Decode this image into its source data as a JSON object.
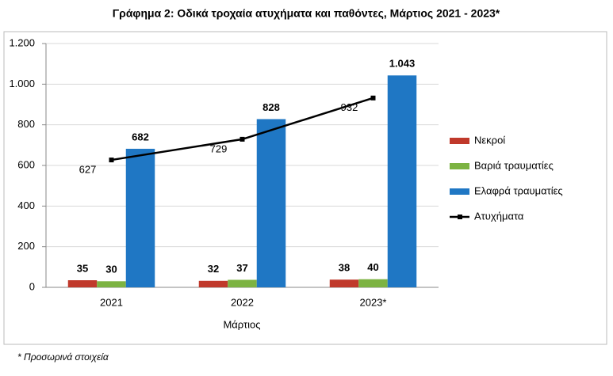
{
  "chart_data": {
    "type": "bar",
    "title": "Γράφημα 2: Οδικά τροχαία ατυχήματα και παθόντες, Μάρτιος 2021 - 2023*",
    "xlabel": "Μάρτιος",
    "footnote": "* Προσωρινά στοιχεία",
    "categories": [
      "2021",
      "2022",
      "2023*"
    ],
    "series": [
      {
        "name": "Νεκροί",
        "color": "#c0392b",
        "type": "bar",
        "values": [
          35,
          32,
          38
        ]
      },
      {
        "name": "Βαριά τραυματίες",
        "color": "#7cb342",
        "type": "bar",
        "values": [
          30,
          37,
          40
        ]
      },
      {
        "name": "Ελαφρά τραυματίες",
        "color": "#1f77c4",
        "type": "bar",
        "values": [
          682,
          828,
          1043
        ],
        "value_labels": [
          "682",
          "828",
          "1.043"
        ]
      },
      {
        "name": "Ατυχήματα",
        "color": "#000000",
        "type": "line",
        "values": [
          627,
          729,
          932
        ]
      }
    ],
    "ylim": [
      0,
      1200
    ],
    "yticks": [
      0,
      200,
      400,
      600,
      800,
      {
        "value": 1000,
        "label": "1.000"
      },
      {
        "value": 1200,
        "label": "1.200"
      }
    ],
    "grid": true,
    "legend": "right"
  }
}
